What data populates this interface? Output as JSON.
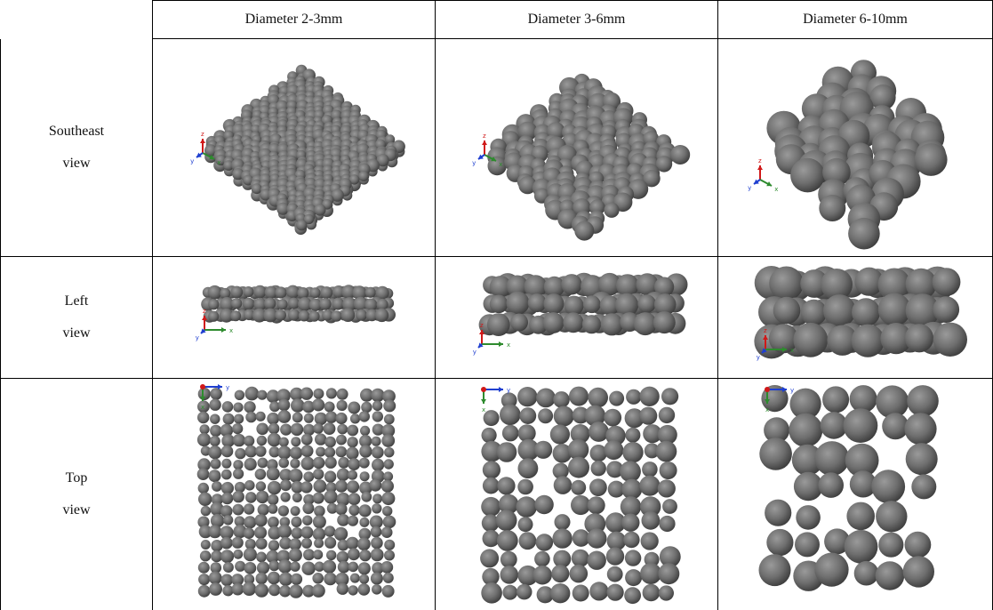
{
  "table": {
    "column_headers": [
      "Diameter 2-3mm",
      "Diameter 3-6mm",
      "Diameter 6-10mm"
    ],
    "rows": [
      {
        "label_line1": "Southeast",
        "label_line2": "view"
      },
      {
        "label_line1": "Left",
        "label_line2": "view"
      },
      {
        "label_line1": "Top",
        "label_line2": "view"
      }
    ]
  },
  "axis_labels": {
    "x": "x",
    "y": "y",
    "z": "z"
  },
  "colors": {
    "sphere": "#6e6e6e",
    "sphere_highlight": "#9a9a9a",
    "sphere_shadow": "#3a3a3a",
    "axis_x": "#2e8b2e",
    "axis_y": "#1f3fd0",
    "axis_z": "#d01818",
    "rule": "#000000"
  }
}
